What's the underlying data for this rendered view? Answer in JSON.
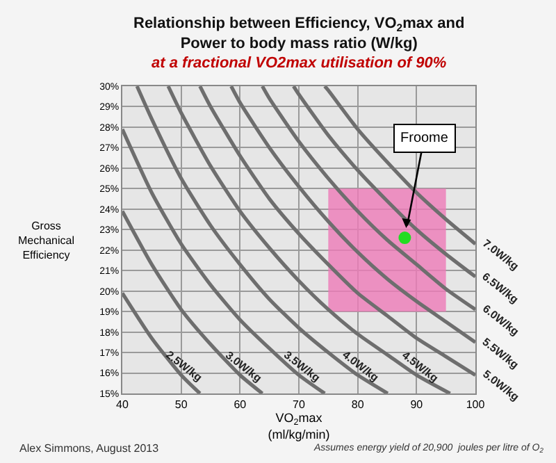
{
  "chart_data": {
    "type": "line",
    "title": "Relationship between Efficiency, VO$_{2}$max and Power to body mass ratio (W/kg)",
    "subtitle": "at a fractional VO2max utilisation of 90%",
    "xlabel": "VO$_{2}$max\n(ml/kg/min)",
    "ylabel": "Gross\nMechanical\nEfficiency",
    "xlim": [
      40,
      100
    ],
    "xticks": [
      40,
      50,
      60,
      70,
      80,
      90,
      100
    ],
    "ylim": [
      15,
      30
    ],
    "yticks": [
      {
        "value": 15,
        "label": "15%"
      },
      {
        "value": 16,
        "label": "16%"
      },
      {
        "value": 17,
        "label": "17%"
      },
      {
        "value": 18,
        "label": "18%"
      },
      {
        "value": 19,
        "label": "19%"
      },
      {
        "value": 20,
        "label": "20%"
      },
      {
        "value": 21,
        "label": "21%"
      },
      {
        "value": 22,
        "label": "22%"
      },
      {
        "value": 23,
        "label": "23%"
      },
      {
        "value": 24,
        "label": "24%"
      },
      {
        "value": 25,
        "label": "25%"
      },
      {
        "value": 26,
        "label": "26%"
      },
      {
        "value": 27,
        "label": "27%"
      },
      {
        "value": 28,
        "label": "28%"
      },
      {
        "value": 29,
        "label": "29%"
      },
      {
        "value": 30,
        "label": "30%"
      }
    ],
    "grid": true,
    "legend": false,
    "marker": "none",
    "line_style": "solid",
    "series": [
      {
        "type": "area",
        "color": "#ee7ab8",
        "x": [
          75,
          95
        ],
        "values": [
          null,
          null
        ],
        "lower": [
          19,
          19
        ],
        "upper": [
          25,
          25
        ]
      },
      {
        "name": "2.5W/kg",
        "color": "#6e6e6e",
        "x": [
          40,
          45,
          50,
          53.2
        ],
        "values": [
          19.9,
          17.7,
          15.9,
          15.0
        ]
      },
      {
        "name": "3.0W/kg",
        "color": "#6e6e6e",
        "x": [
          40,
          45,
          50,
          55,
          60,
          63.8
        ],
        "values": [
          23.9,
          21.3,
          19.1,
          17.4,
          15.9,
          15.0
        ]
      },
      {
        "name": "3.5W/kg",
        "color": "#6e6e6e",
        "x": [
          40,
          45,
          50,
          55,
          60,
          65,
          70,
          74.4
        ],
        "values": [
          27.9,
          24.8,
          22.3,
          20.3,
          18.6,
          17.2,
          15.9,
          15.0
        ]
      },
      {
        "name": "4.0W/kg",
        "color": "#6e6e6e",
        "x": [
          42.5,
          45,
          50,
          55,
          60,
          65,
          70,
          75,
          80,
          85.1
        ],
        "values": [
          30.0,
          28.4,
          25.5,
          23.2,
          21.3,
          19.6,
          18.2,
          17.0,
          15.9,
          15.0
        ]
      },
      {
        "name": "4.5W/kg",
        "color": "#6e6e6e",
        "x": [
          47.8,
          50,
          55,
          60,
          65,
          70,
          75,
          80,
          85,
          90,
          95.7
        ],
        "values": [
          30.0,
          28.7,
          26.1,
          23.9,
          22.1,
          20.5,
          19.1,
          17.9,
          16.9,
          15.9,
          15.0
        ]
      },
      {
        "name": "5.0W/kg",
        "color": "#6e6e6e",
        "x": [
          53.2,
          55,
          60,
          65,
          70,
          75,
          80,
          85,
          90,
          95,
          100
        ],
        "values": [
          30.0,
          29.0,
          26.6,
          24.5,
          22.8,
          21.3,
          19.9,
          18.8,
          17.7,
          16.8,
          15.9
        ]
      },
      {
        "name": "5.5W/kg",
        "color": "#6e6e6e",
        "x": [
          58.5,
          60,
          65,
          70,
          75,
          80,
          85,
          90,
          95,
          100
        ],
        "values": [
          30.0,
          29.2,
          27.0,
          25.1,
          23.4,
          21.9,
          20.6,
          19.5,
          18.5,
          17.5
        ]
      },
      {
        "name": "6.0W/kg",
        "color": "#6e6e6e",
        "x": [
          63.8,
          65,
          70,
          75,
          80,
          85,
          90,
          95,
          100
        ],
        "values": [
          30.0,
          29.4,
          27.3,
          25.5,
          23.9,
          22.5,
          21.3,
          20.1,
          19.1
        ]
      },
      {
        "name": "6.5W/kg",
        "color": "#6e6e6e",
        "x": [
          69.1,
          70,
          75,
          80,
          85,
          90,
          95,
          100
        ],
        "values": [
          30.0,
          29.6,
          27.6,
          25.9,
          24.4,
          23.0,
          21.8,
          20.7
        ]
      },
      {
        "name": "7.0W/kg",
        "color": "#6e6e6e",
        "x": [
          74.4,
          75,
          80,
          85,
          90,
          95,
          100
        ],
        "values": [
          30.0,
          29.8,
          27.9,
          26.3,
          24.8,
          23.5,
          22.3
        ]
      },
      {
        "type": "scatter",
        "marker": "circle",
        "color": "#22dd22",
        "x": [
          88
        ],
        "values": [
          22.6
        ]
      }
    ],
    "annotations": [
      {
        "text": "Froome",
        "x": 88,
        "y": 22.6
      },
      "Alex Simmons, August 2013",
      "Assumes energy yield of 20,900  joules per litre of O$_{2}$"
    ]
  }
}
